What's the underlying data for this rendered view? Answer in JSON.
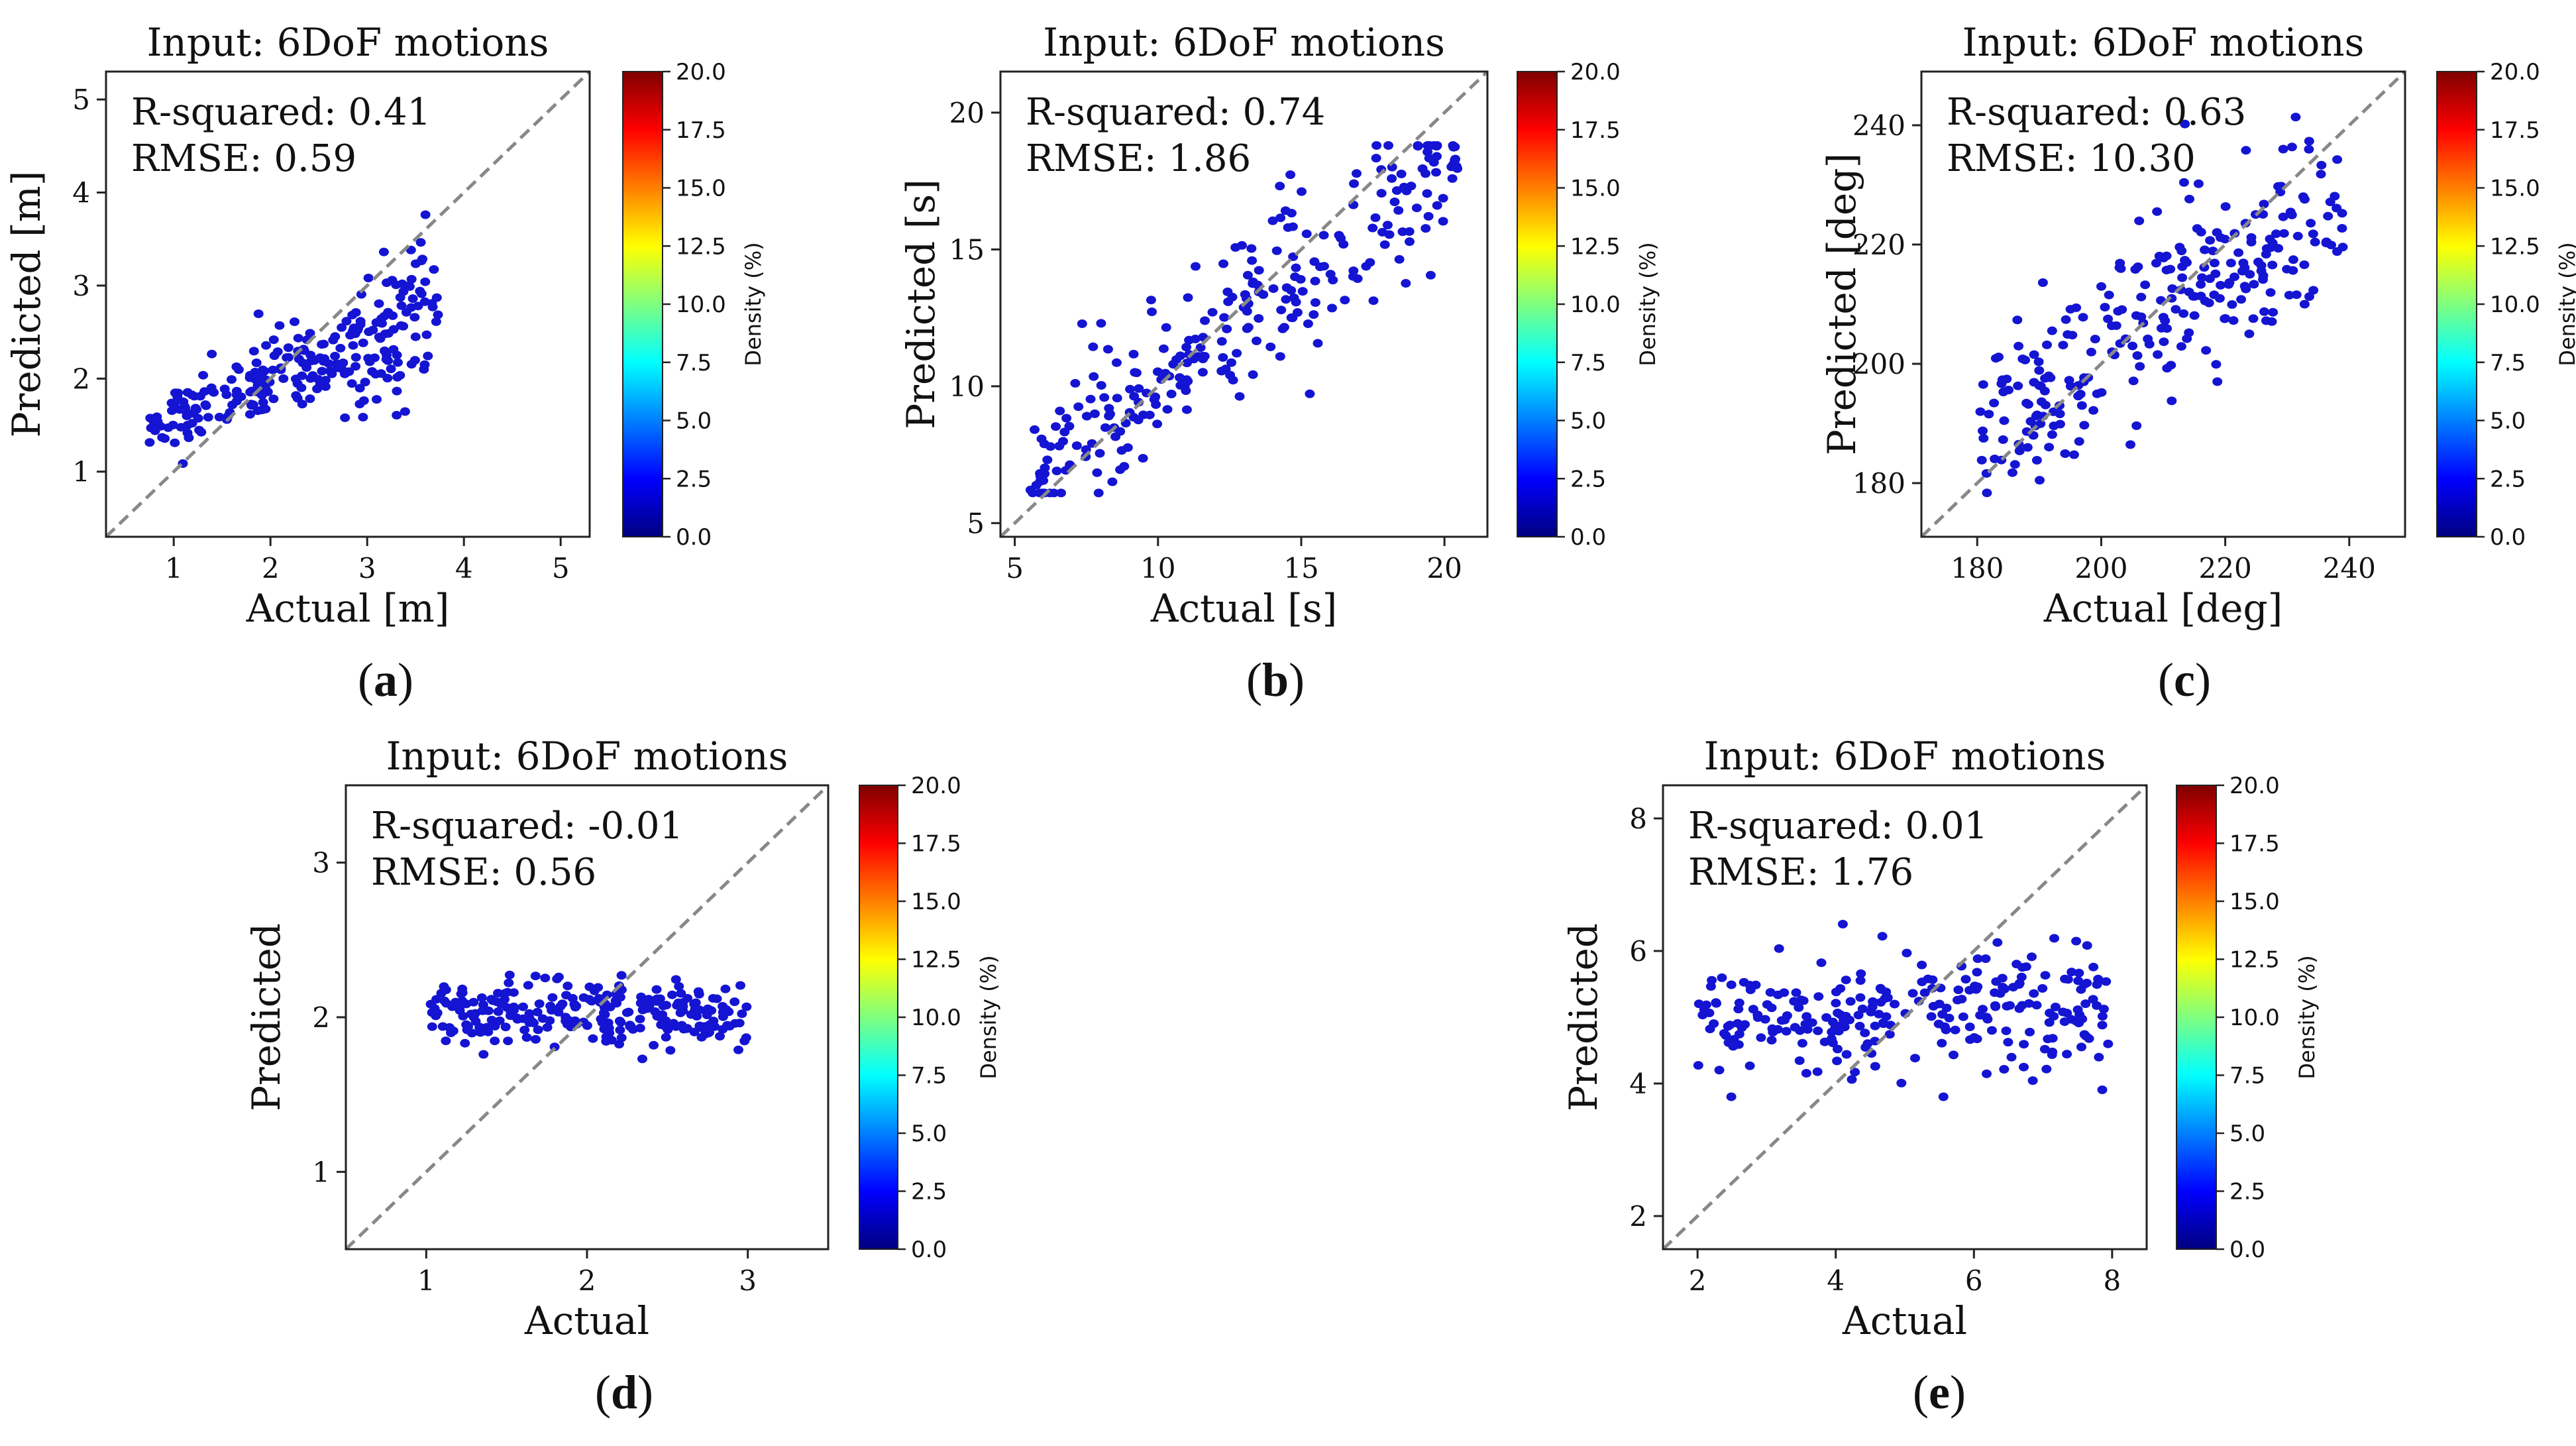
{
  "chart_data": [
    {
      "id": "a",
      "type": "scatter",
      "title": "Input: 6DoF motions",
      "xlabel": "Actual [m]",
      "ylabel": "Predicted [m]",
      "xlim": [
        0.3,
        5.3
      ],
      "ylim": [
        0.3,
        5.3
      ],
      "xticks": [
        1,
        2,
        3,
        4,
        5
      ],
      "yticks": [
        1,
        2,
        3,
        4,
        5
      ],
      "r_squared_text": "R-squared: 0.41",
      "rmse_text": "RMSE: 0.59",
      "reference_line": "y = x (dashed, gray)",
      "colorbar": {
        "label": "Density (%)",
        "min": 0,
        "max": 20,
        "ticks": [
          "0.0",
          "2.5",
          "5.0",
          "7.5",
          "10.0",
          "12.5",
          "15.0",
          "17.5",
          "20.0"
        ]
      },
      "panel_label": "(a)",
      "panel_letter": "a",
      "points": {
        "n": 260,
        "x_range": [
          0.75,
          3.75
        ],
        "slope": 0.45,
        "intercept": 1.1,
        "noise_sd": 0.42,
        "y_clip": [
          1.05,
          4.75
        ],
        "spread": "fan"
      }
    },
    {
      "id": "b",
      "type": "scatter",
      "title": "Input: 6DoF motions",
      "xlabel": "Actual [s]",
      "ylabel": "Predicted [s]",
      "xlim": [
        4.5,
        21.5
      ],
      "ylim": [
        4.5,
        21.5
      ],
      "xticks": [
        5,
        10,
        15,
        20
      ],
      "yticks": [
        5,
        10,
        15,
        20
      ],
      "r_squared_text": "R-squared: 0.74",
      "rmse_text": "RMSE: 1.86",
      "reference_line": "y = x (dashed, gray)",
      "colorbar": {
        "label": "Density (%)",
        "min": 0,
        "max": 20,
        "ticks": [
          "0.0",
          "2.5",
          "5.0",
          "7.5",
          "10.0",
          "12.5",
          "15.0",
          "17.5",
          "20.0"
        ]
      },
      "panel_label": "(b)",
      "panel_letter": "b",
      "points": {
        "n": 270,
        "x_range": [
          5.5,
          20.5
        ],
        "slope": 0.82,
        "intercept": 1.8,
        "noise_sd": 1.45,
        "y_clip": [
          6.1,
          18.8
        ],
        "spread": "uniform"
      }
    },
    {
      "id": "c",
      "type": "scatter",
      "title": "Input: 6DoF motions",
      "xlabel": "Actual [deg]",
      "ylabel": "Predicted [deg]",
      "xlim": [
        171,
        249
      ],
      "ylim": [
        171,
        249
      ],
      "xticks": [
        180,
        200,
        220,
        240
      ],
      "yticks": [
        180,
        200,
        220,
        240
      ],
      "r_squared_text": "R-squared: 0.63",
      "rmse_text": "RMSE: 10.30",
      "reference_line": "y = x (dashed, gray)",
      "colorbar": {
        "label": "Density (%)",
        "min": 0,
        "max": 20,
        "ticks": [
          "0.0",
          "2.5",
          "5.0",
          "7.5",
          "10.0",
          "12.5",
          "15.0",
          "17.5",
          "20.0"
        ]
      },
      "panel_label": "(c)",
      "panel_letter": "c",
      "points": {
        "n": 270,
        "x_range": [
          180.5,
          239
        ],
        "slope": 0.6,
        "intercept": 82,
        "noise_sd": 8.2,
        "y_clip": [
          176,
          244
        ],
        "spread": "uniform"
      }
    },
    {
      "id": "d",
      "type": "scatter",
      "title": "Input: 6DoF motions",
      "xlabel": "Actual",
      "ylabel": "Predicted",
      "xlim": [
        0.5,
        3.5
      ],
      "ylim": [
        0.5,
        3.5
      ],
      "xticks": [
        1,
        2,
        3
      ],
      "yticks": [
        1,
        2,
        3
      ],
      "r_squared_text": "R-squared: -0.01",
      "rmse_text": "RMSE: 0.56",
      "reference_line": "y = x (dashed, gray)",
      "colorbar": {
        "label": "Density (%)",
        "min": 0,
        "max": 20,
        "ticks": [
          "0.0",
          "2.5",
          "5.0",
          "7.5",
          "10.0",
          "12.5",
          "15.0",
          "17.5",
          "20.0"
        ]
      },
      "panel_label": "(d)",
      "panel_letter": "d",
      "points": {
        "n": 260,
        "x_range": [
          1.0,
          3.0
        ],
        "slope": 0.0,
        "intercept": 2.02,
        "noise_sd": 0.11,
        "y_clip": [
          1.62,
          2.45
        ],
        "spread": "uniform"
      }
    },
    {
      "id": "e",
      "type": "scatter",
      "title": "Input: 6DoF motions",
      "xlabel": "Actual",
      "ylabel": "Predicted",
      "xlim": [
        1.5,
        8.5
      ],
      "ylim": [
        1.5,
        8.5
      ],
      "xticks": [
        2,
        4,
        6,
        8
      ],
      "yticks": [
        2,
        4,
        6,
        8
      ],
      "r_squared_text": "R-squared: 0.01",
      "rmse_text": "RMSE: 1.76",
      "reference_line": "y = x (dashed, gray)",
      "colorbar": {
        "label": "Density (%)",
        "min": 0,
        "max": 20,
        "ticks": [
          "0.0",
          "2.5",
          "5.0",
          "7.5",
          "10.0",
          "12.5",
          "15.0",
          "17.5",
          "20.0"
        ]
      },
      "panel_label": "(e)",
      "panel_letter": "e",
      "points": {
        "n": 260,
        "x_range": [
          2.0,
          8.0
        ],
        "slope": 0.02,
        "intercept": 4.95,
        "noise_sd": 0.45,
        "y_clip": [
          3.8,
          7.0
        ],
        "spread": "uniform"
      }
    }
  ],
  "colors": {
    "point": "#1414d2",
    "reference_line": "#888888",
    "axis": "#222222",
    "colormap": [
      "#00007f",
      "#0000ff",
      "#007fff",
      "#00ffff",
      "#7fff7f",
      "#ffff00",
      "#ff7f00",
      "#ff0000",
      "#7f0000"
    ]
  }
}
